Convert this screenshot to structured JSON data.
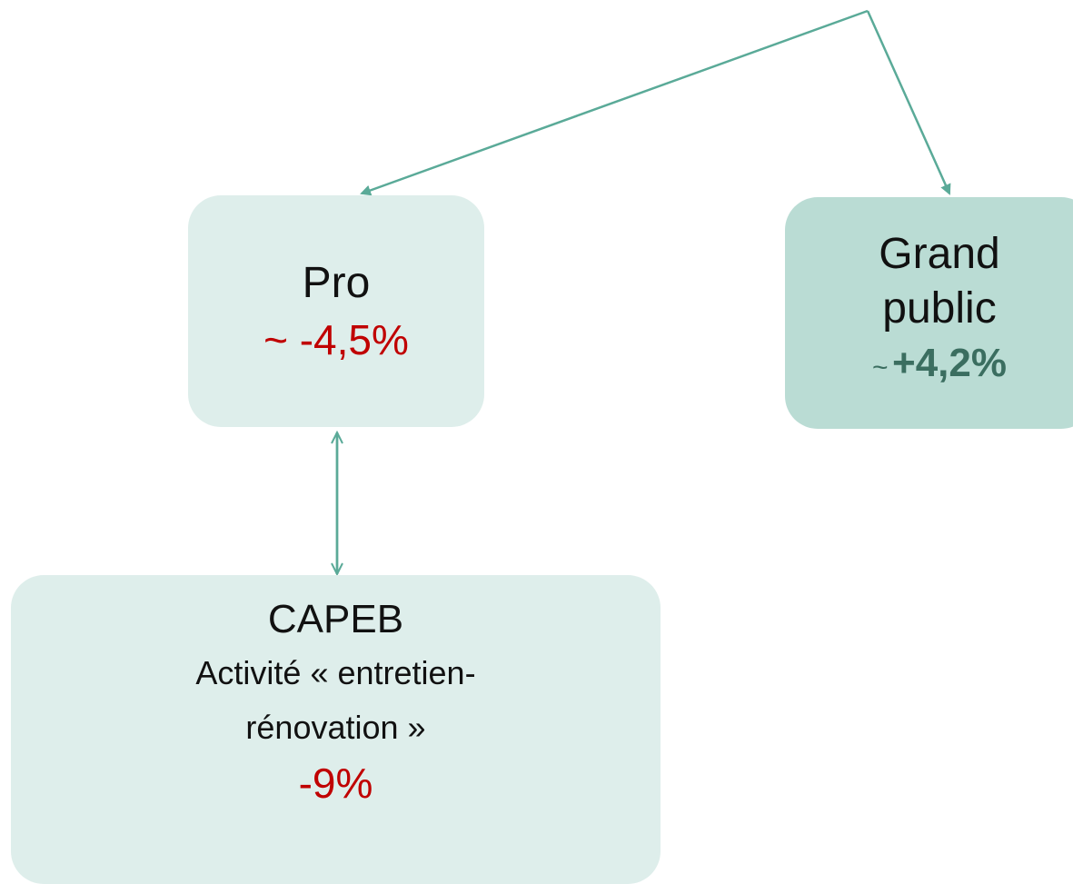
{
  "nodes": [
    {
      "label": "Pro",
      "value": "~ -4,5%"
    },
    {
      "label_lines": [
        "Grand",
        "public"
      ],
      "prefix": "~",
      "value": "+4,2%"
    },
    {
      "label": "CAPEB",
      "description_lines": [
        "Activité « entretien-",
        "rénovation »"
      ],
      "value": "-9%"
    }
  ]
}
